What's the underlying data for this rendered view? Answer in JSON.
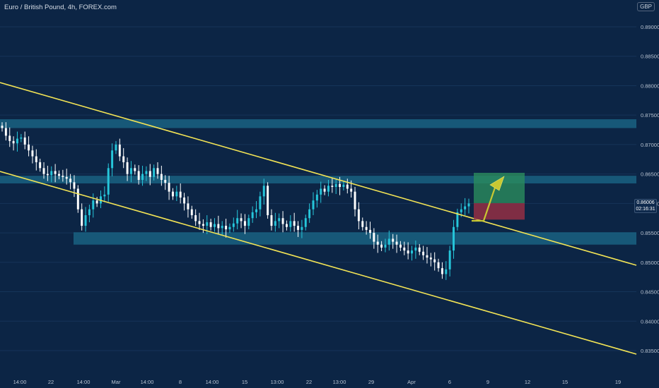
{
  "header": {
    "title": "Euro / British Pound, 4h, FOREX.com",
    "currency": "GBP"
  },
  "last_price": {
    "value": "0.86006",
    "countdown": "02:16:31"
  },
  "colors": {
    "background": "#0c2545",
    "bull": "#26c6da",
    "bear": "#ffffff",
    "zone": "#1c6c8c",
    "trendline": "#f3e455",
    "target_zone": "#2b8c5c",
    "stop_zone": "#9c3044",
    "arrow": "#c8c832"
  },
  "chart_data": {
    "type": "candlestick",
    "title": "Euro / British Pound, 4h, FOREX.com",
    "ylim": [
      0.8335,
      0.8935
    ],
    "y_ticks": [
      "0.89000",
      "0.88500",
      "0.88000",
      "0.87500",
      "0.87000",
      "0.86500",
      "0.86000",
      "0.85500",
      "0.85000",
      "0.84500",
      "0.84000",
      "0.83500"
    ],
    "x_ticks": [
      "14:00",
      "22",
      "14:00",
      "Mar",
      "14:00",
      "8",
      "14:00",
      "15",
      "13:00",
      "22",
      "13:00",
      "29",
      "Apr",
      "6",
      "9",
      "12",
      "15",
      "19"
    ],
    "closes": [
      0.8728,
      0.8715,
      0.8706,
      0.8702,
      0.871,
      0.8712,
      0.87,
      0.869,
      0.868,
      0.867,
      0.866,
      0.865,
      0.8648,
      0.8655,
      0.865,
      0.8647,
      0.8645,
      0.8642,
      0.8636,
      0.8625,
      0.859,
      0.8562,
      0.858,
      0.859,
      0.8605,
      0.86,
      0.8612,
      0.8615,
      0.866,
      0.869,
      0.87,
      0.868,
      0.867,
      0.865,
      0.866,
      0.8655,
      0.864,
      0.865,
      0.8655,
      0.8645,
      0.866,
      0.865,
      0.864,
      0.8635,
      0.862,
      0.8612,
      0.862,
      0.861,
      0.86,
      0.859,
      0.858,
      0.857,
      0.8565,
      0.8562,
      0.8568,
      0.856,
      0.8565,
      0.8558,
      0.8562,
      0.8556,
      0.856,
      0.8566,
      0.8575,
      0.857,
      0.8562,
      0.8575,
      0.8585,
      0.859,
      0.8612,
      0.863,
      0.858,
      0.8562,
      0.857,
      0.8575,
      0.8565,
      0.856,
      0.857,
      0.8562,
      0.8555,
      0.856,
      0.8575,
      0.859,
      0.8605,
      0.8615,
      0.8625,
      0.862,
      0.863,
      0.8628,
      0.8633,
      0.8628,
      0.8632,
      0.8625,
      0.862,
      0.859,
      0.857,
      0.856,
      0.8555,
      0.855,
      0.8535,
      0.853,
      0.8525,
      0.853,
      0.854,
      0.8535,
      0.853,
      0.8525,
      0.852,
      0.8515,
      0.852,
      0.8525,
      0.8518,
      0.8512,
      0.8508,
      0.8505,
      0.85,
      0.849,
      0.848,
      0.8488,
      0.852,
      0.856,
      0.8585,
      0.859,
      0.8595,
      0.86
    ]
  },
  "annotations": {
    "trend_channel": "descending",
    "zones": [
      "resistance ~0.8735",
      "resistance ~0.8638",
      "support ~0.8542"
    ],
    "position": "long"
  }
}
